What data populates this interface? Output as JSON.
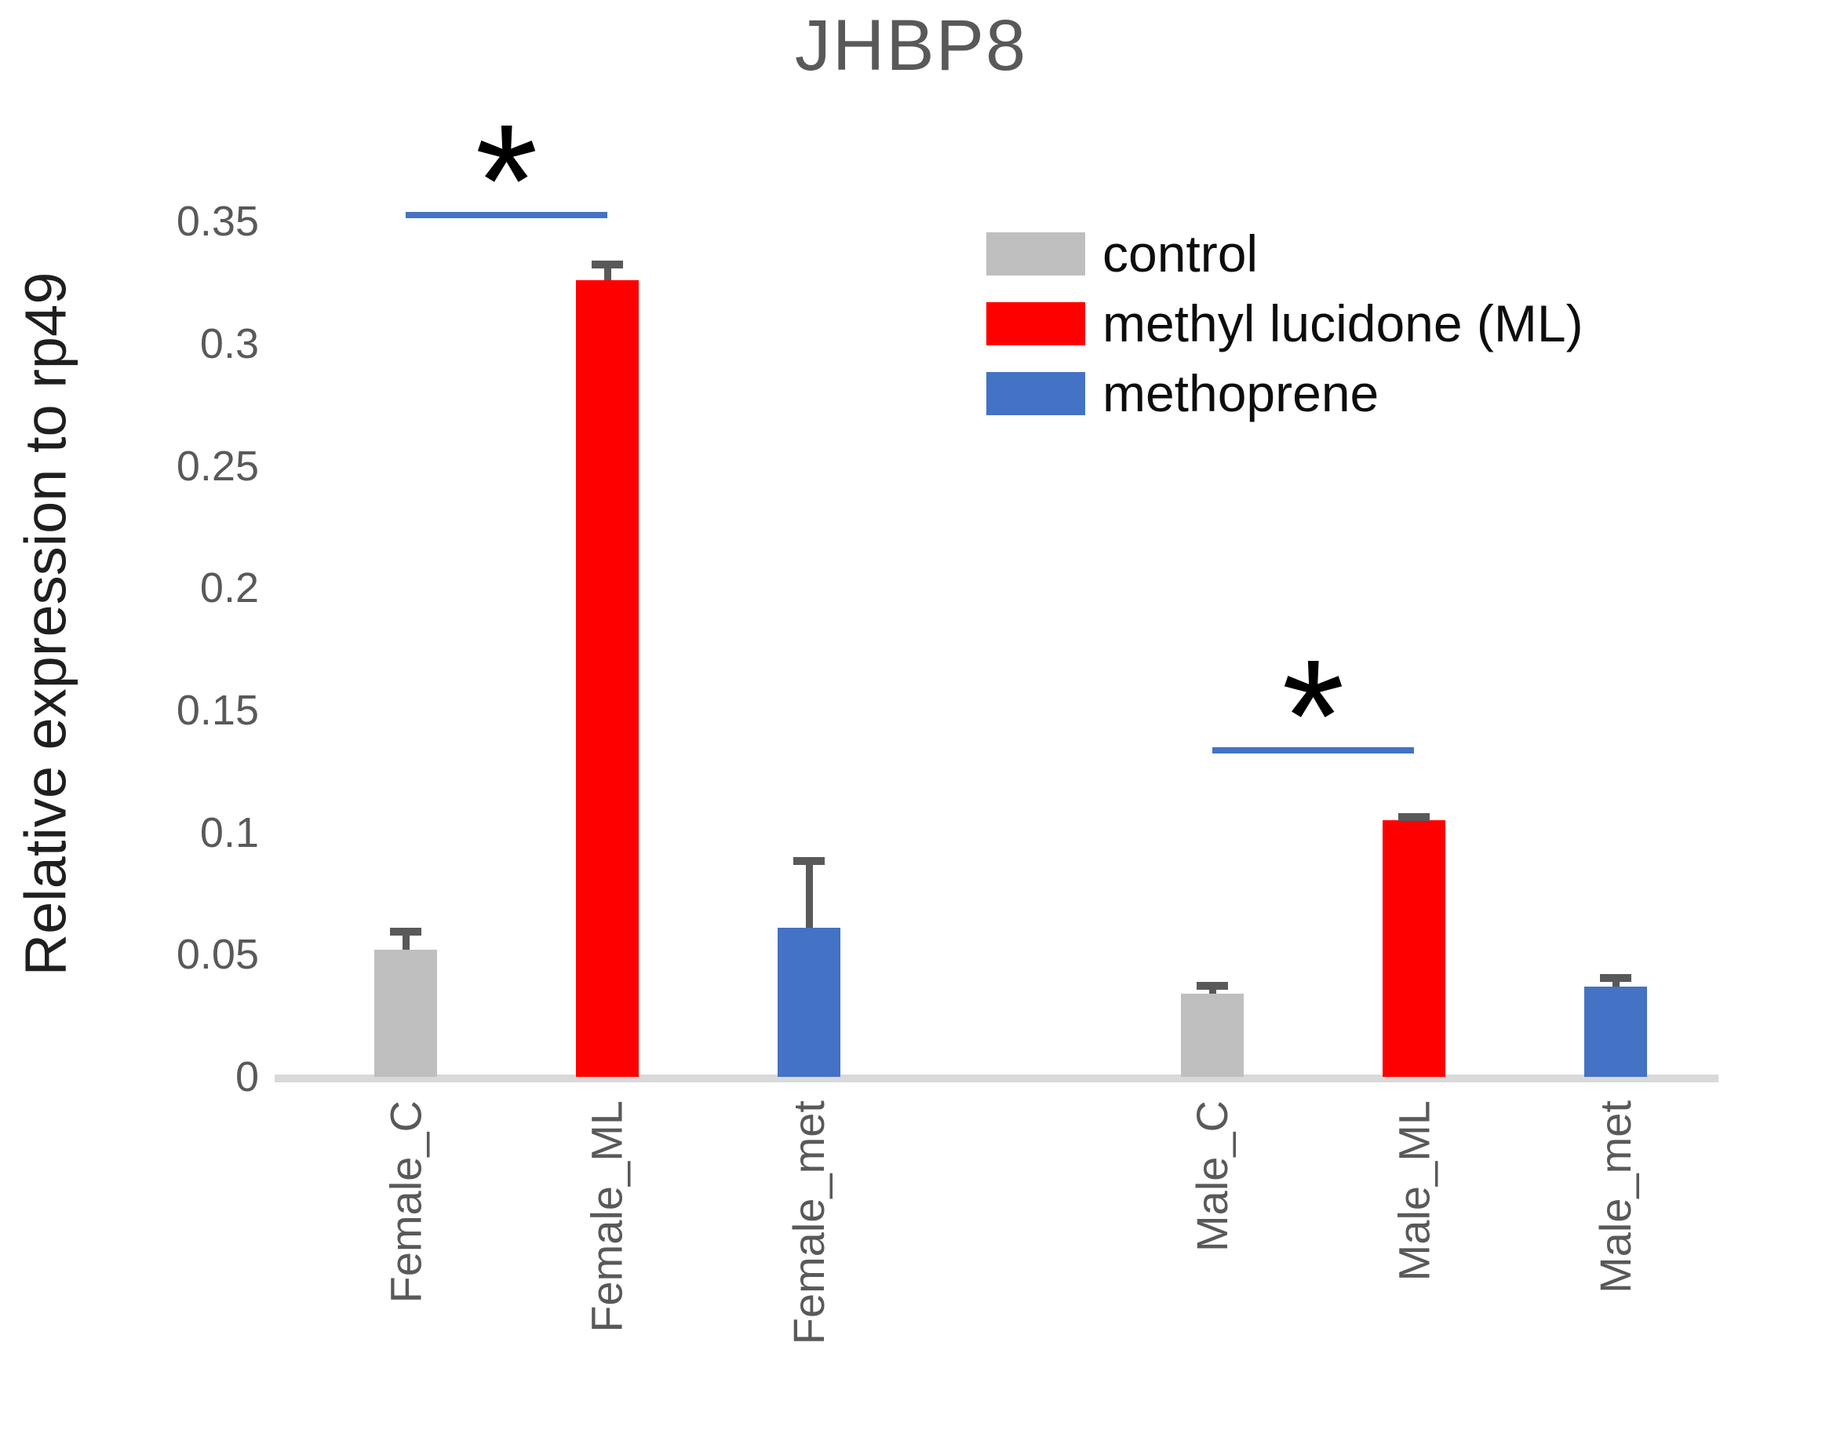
{
  "title": "JHBP8",
  "chart_data": {
    "type": "bar",
    "title": "JHBP8",
    "xlabel": "",
    "ylabel": "Relative expression to rp49",
    "ylim": [
      0,
      0.35
    ],
    "yticks": [
      0,
      0.05,
      0.1,
      0.15,
      0.2,
      0.25,
      0.3,
      0.35
    ],
    "grid": false,
    "legend_position": "upper right",
    "categories": [
      "Female_C",
      "Female_ML",
      "Female_met",
      "Male_C",
      "Male_ML",
      "Male_met"
    ],
    "values": [
      0.052,
      0.326,
      0.061,
      0.034,
      0.105,
      0.037
    ],
    "errors": [
      0.009,
      0.008,
      0.029,
      0.005,
      0.003,
      0.005
    ],
    "bar_series": [
      "control",
      "methyl lucidone (ML)",
      "methoprene",
      "control",
      "methyl lucidone (ML)",
      "methoprene"
    ],
    "legend": [
      {
        "label": "control",
        "color": "#BFBFBF"
      },
      {
        "label": "methyl lucidone (ML)",
        "color": "#FF0000"
      },
      {
        "label": "methoprene",
        "color": "#4472C4"
      }
    ],
    "annotations": [
      {
        "label": "*",
        "from": "Female_C",
        "to": "Female_ML",
        "y": 0.354
      },
      {
        "label": "*",
        "from": "Male_C",
        "to": "Male_ML",
        "y": 0.135
      }
    ],
    "colors": {
      "axis_line": "#D9D9D9",
      "error_bar": "#595959",
      "tick_text": "#595959",
      "sig_line": "#4472C4",
      "title_text": "#595959",
      "ylabel_text": "#1f1f1f",
      "legend_text": "#0d0d0d",
      "background": "#FFFFFF"
    }
  }
}
